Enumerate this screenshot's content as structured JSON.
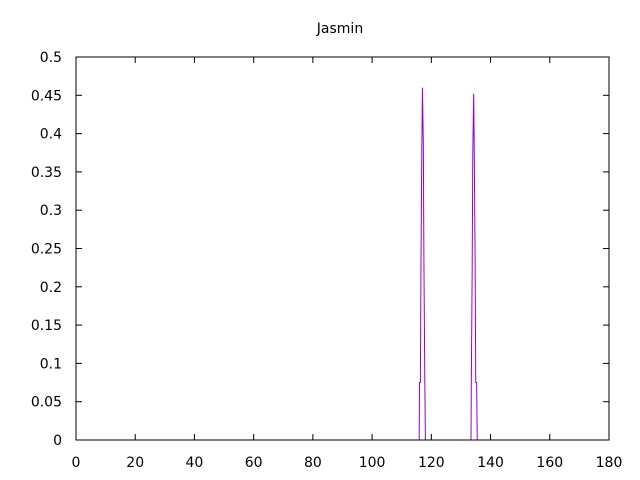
{
  "chart_data": {
    "type": "line",
    "title": "Jasmin",
    "xlabel": "",
    "ylabel": "",
    "xlim": [
      0,
      180
    ],
    "ylim": [
      0,
      0.5
    ],
    "xticks": [
      0,
      20,
      40,
      60,
      80,
      100,
      120,
      140,
      160,
      180
    ],
    "yticks": [
      0,
      0.05,
      0.1,
      0.15,
      0.2,
      0.25,
      0.3,
      0.35,
      0.4,
      0.45,
      0.5
    ],
    "ytick_labels": [
      "0",
      "0.05",
      "0.1",
      "0.15",
      "0.2",
      "0.25",
      "0.3",
      "0.35",
      "0.4",
      "0.45",
      "0.5"
    ],
    "grid": false,
    "legend": "none",
    "series": [
      {
        "color": "#9400d3",
        "x": [
          0,
          115.9,
          116,
          116.3,
          116.5,
          116.8,
          117,
          117.3,
          117.5,
          117.8,
          118,
          118.5,
          120,
          133.4,
          133.5,
          133.8,
          134,
          134.3,
          134.5,
          134.8,
          135,
          135.3,
          135.5,
          136,
          140,
          180
        ],
        "y": [
          0,
          0,
          0.075,
          0.075,
          0.23,
          0.385,
          0.46,
          0.385,
          0.23,
          0.075,
          0,
          0,
          0,
          0,
          0.075,
          0.225,
          0.375,
          0.452,
          0.375,
          0.225,
          0.075,
          0.075,
          0,
          0,
          0,
          0
        ]
      }
    ]
  }
}
